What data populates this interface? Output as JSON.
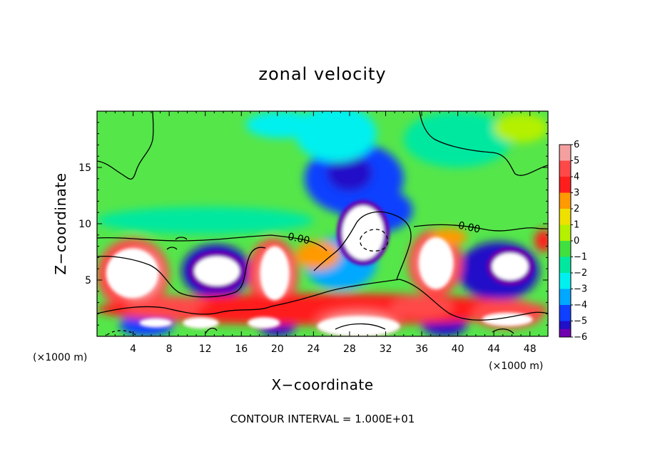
{
  "chart_data": {
    "type": "heatmap",
    "title": "zonal velocity",
    "xlabel": "X−coordinate",
    "ylabel": "Z−coordinate",
    "x_unit_label": "(×1000 m)",
    "x_unit_label_2": "(×1000 m)",
    "footer": "CONTOUR INTERVAL = 1.000E+01",
    "xlim": [
      0,
      50
    ],
    "ylim": [
      0,
      20
    ],
    "x_ticks": [
      4,
      8,
      12,
      16,
      20,
      24,
      28,
      32,
      36,
      40,
      44,
      48
    ],
    "y_ticks": [
      5,
      10,
      15
    ],
    "contour_labels": [
      {
        "text": "0.00",
        "x": 22.3,
        "y": 8.4
      },
      {
        "text": "0.00",
        "x": 41.2,
        "y": 9.4
      }
    ],
    "colorbar": {
      "levels": [
        6,
        5,
        4,
        3,
        2,
        1,
        0,
        -1,
        -2,
        -3,
        -4,
        -5,
        -6
      ],
      "labels": [
        "6",
        "5",
        "4",
        "3",
        "2",
        "1",
        "0",
        "−1",
        "−2",
        "−3",
        "−4",
        "−5",
        "−6"
      ],
      "colors": [
        "#f5a0a0",
        "#ff4848",
        "#ff1e1e",
        "#ff9a00",
        "#f0e000",
        "#b4f000",
        "#40e040",
        "#00e8a0",
        "#00f0f0",
        "#00a8ff",
        "#1040ff",
        "#2010c8",
        "#7000b0"
      ]
    },
    "background_color": "#55e64a",
    "blobs": [
      {
        "kind": "low",
        "cx": 28.5,
        "cy": 14.0,
        "rx": 5.5,
        "ry": 3.2,
        "level": -4
      },
      {
        "kind": "low",
        "cx": 28.0,
        "cy": 14.5,
        "rx": 2.5,
        "ry": 1.6,
        "level": -5
      },
      {
        "kind": "low",
        "cx": 26.5,
        "cy": 18.0,
        "rx": 4.5,
        "ry": 2.5,
        "level": -2
      },
      {
        "kind": "low",
        "cx": 31.0,
        "cy": 11.2,
        "rx": 4.0,
        "ry": 2.0,
        "level": -4
      },
      {
        "kind": "low",
        "cx": 12.0,
        "cy": 10.3,
        "rx": 12.0,
        "ry": 1.2,
        "level": -1
      },
      {
        "kind": "low",
        "cx": 13.2,
        "cy": 5.8,
        "rx": 3.8,
        "ry": 2.4,
        "level": -5
      },
      {
        "kind": "low",
        "cx": 27.0,
        "cy": 6.5,
        "rx": 4.0,
        "ry": 2.4,
        "level": -3
      },
      {
        "kind": "low",
        "cx": 44.5,
        "cy": 5.8,
        "rx": 4.5,
        "ry": 2.6,
        "level": -5
      },
      {
        "kind": "low",
        "cx": 40.0,
        "cy": 17.5,
        "rx": 6.0,
        "ry": 2.5,
        "level": -1
      },
      {
        "kind": "low",
        "cx": 5.5,
        "cy": 1.0,
        "rx": 3.0,
        "ry": 1.0,
        "level": -4
      },
      {
        "kind": "low",
        "cx": 38.5,
        "cy": 1.0,
        "rx": 2.5,
        "ry": 1.0,
        "level": -5
      },
      {
        "kind": "low",
        "cx": 20.0,
        "cy": 0.8,
        "rx": 2.0,
        "ry": 0.8,
        "level": -5
      },
      {
        "kind": "low",
        "cx": 47.0,
        "cy": 18.5,
        "rx": 3.0,
        "ry": 1.3,
        "level": 1
      },
      {
        "kind": "low",
        "cx": 20.5,
        "cy": 18.8,
        "rx": 4.0,
        "ry": 1.2,
        "level": -2
      },
      {
        "kind": "high",
        "cx": 4.0,
        "cy": 5.5,
        "rx": 4.0,
        "ry": 3.2,
        "level": 5
      },
      {
        "kind": "high",
        "cx": 4.5,
        "cy": 5.5,
        "rx": 2.6,
        "ry": 2.2,
        "level": 6
      },
      {
        "kind": "high",
        "cx": 19.5,
        "cy": 5.5,
        "rx": 2.8,
        "ry": 3.2,
        "level": 5
      },
      {
        "kind": "high",
        "cx": 19.7,
        "cy": 5.5,
        "rx": 1.7,
        "ry": 2.1,
        "level": 6
      },
      {
        "kind": "high",
        "cx": 37.5,
        "cy": 6.5,
        "rx": 3.0,
        "ry": 3.0,
        "level": 5
      },
      {
        "kind": "high",
        "cx": 37.5,
        "cy": 6.5,
        "rx": 1.9,
        "ry": 2.0,
        "level": 6
      },
      {
        "kind": "high",
        "cx": 25.0,
        "cy": 2.4,
        "rx": 25.0,
        "ry": 1.4,
        "level": 4
      },
      {
        "kind": "high",
        "cx": 8.0,
        "cy": 2.6,
        "rx": 5.0,
        "ry": 1.0,
        "level": 5
      },
      {
        "kind": "high",
        "cx": 15.0,
        "cy": 2.2,
        "rx": 4.0,
        "ry": 0.9,
        "level": 4
      },
      {
        "kind": "high",
        "cx": 36.0,
        "cy": 2.6,
        "rx": 3.5,
        "ry": 1.0,
        "level": 5
      },
      {
        "kind": "high",
        "cx": 45.5,
        "cy": 2.0,
        "rx": 4.0,
        "ry": 1.3,
        "level": 5
      },
      {
        "kind": "high",
        "cx": 29.0,
        "cy": 1.4,
        "rx": 5.0,
        "ry": 1.3,
        "level": 5
      },
      {
        "kind": "high",
        "cx": 29.0,
        "cy": 1.0,
        "rx": 4.0,
        "ry": 1.0,
        "level": 6
      },
      {
        "kind": "high",
        "cx": 24.5,
        "cy": 7.2,
        "rx": 2.5,
        "ry": 1.3,
        "level": 3
      },
      {
        "kind": "high",
        "cx": 39.0,
        "cy": 8.8,
        "rx": 2.0,
        "ry": 0.8,
        "level": 3
      },
      {
        "kind": "high",
        "cx": 49.5,
        "cy": 8.5,
        "rx": 1.0,
        "ry": 1.0,
        "level": 4
      }
    ],
    "saturated_high": [
      {
        "cx": 3.9,
        "cy": 5.6,
        "rx": 2.9,
        "ry": 2.2
      },
      {
        "cx": 19.7,
        "cy": 5.6,
        "rx": 1.6,
        "ry": 2.4
      },
      {
        "cx": 37.6,
        "cy": 6.5,
        "rx": 1.9,
        "ry": 2.3
      },
      {
        "cx": 29.0,
        "cy": 0.9,
        "rx": 4.6,
        "ry": 0.9
      },
      {
        "cx": 45.5,
        "cy": 1.5,
        "rx": 2.8,
        "ry": 0.6
      },
      {
        "cx": 11.5,
        "cy": 1.2,
        "rx": 2.0,
        "ry": 0.5
      },
      {
        "cx": 18.5,
        "cy": 1.2,
        "rx": 1.8,
        "ry": 0.5
      },
      {
        "cx": 6.5,
        "cy": 1.2,
        "rx": 1.8,
        "ry": 0.4
      }
    ],
    "saturated_low": [
      {
        "cx": 13.3,
        "cy": 5.8,
        "rx": 2.5,
        "ry": 1.3
      },
      {
        "cx": 29.5,
        "cy": 9.2,
        "rx": 2.3,
        "ry": 2.4
      },
      {
        "cx": 45.8,
        "cy": 6.2,
        "rx": 2.0,
        "ry": 1.2
      }
    ]
  }
}
